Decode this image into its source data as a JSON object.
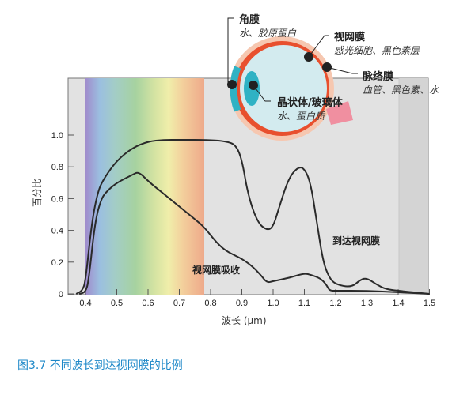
{
  "chart_data": {
    "type": "line",
    "title": "",
    "xlabel": "波长 (μm)",
    "ylabel": "百分比",
    "xlim": [
      0.35,
      1.5
    ],
    "ylim": [
      0,
      1.0
    ],
    "x_ticks": [
      "0.4",
      "0.5",
      "0.6",
      "0.7",
      "0.8",
      "0.9",
      "1.0",
      "1.1",
      "1.2",
      "1.3",
      "1.4",
      "1.5"
    ],
    "y_ticks": [
      "0",
      "0.2",
      "0.4",
      "0.6",
      "0.8",
      "1.0"
    ],
    "grid": false,
    "visible_spectrum_band": [
      0.4,
      0.78
    ],
    "series": [
      {
        "name": "到达视网膜",
        "x": [
          0.37,
          0.39,
          0.4,
          0.42,
          0.44,
          0.46,
          0.5,
          0.55,
          0.6,
          0.65,
          0.7,
          0.8,
          0.85,
          0.88,
          0.9,
          0.92,
          0.95,
          0.98,
          1.0,
          1.02,
          1.05,
          1.08,
          1.1,
          1.12,
          1.14,
          1.16,
          1.18,
          1.2,
          1.25,
          1.28,
          1.3,
          1.33,
          1.36,
          1.4,
          1.5
        ],
        "values": [
          0.0,
          0.02,
          0.08,
          0.45,
          0.65,
          0.73,
          0.84,
          0.92,
          0.96,
          0.97,
          0.97,
          0.97,
          0.96,
          0.94,
          0.85,
          0.62,
          0.45,
          0.4,
          0.42,
          0.55,
          0.73,
          0.8,
          0.79,
          0.7,
          0.45,
          0.2,
          0.1,
          0.06,
          0.04,
          0.09,
          0.1,
          0.06,
          0.03,
          0.02,
          0.0
        ]
      },
      {
        "name": "视网膜吸收",
        "x": [
          0.38,
          0.4,
          0.41,
          0.43,
          0.45,
          0.47,
          0.5,
          0.55,
          0.57,
          0.6,
          0.65,
          0.7,
          0.75,
          0.78,
          0.82,
          0.85,
          0.88,
          0.9,
          0.93,
          0.96,
          0.98,
          1.0,
          1.05,
          1.1,
          1.12,
          1.15,
          1.17,
          1.18,
          1.2,
          1.3,
          1.4,
          1.5
        ],
        "values": [
          0.0,
          0.01,
          0.08,
          0.45,
          0.6,
          0.65,
          0.7,
          0.75,
          0.77,
          0.71,
          0.63,
          0.55,
          0.47,
          0.42,
          0.32,
          0.27,
          0.24,
          0.22,
          0.18,
          0.12,
          0.07,
          0.08,
          0.1,
          0.13,
          0.12,
          0.1,
          0.06,
          0.02,
          0.02,
          0.02,
          0.01,
          0.0
        ]
      }
    ],
    "annotations": [
      "视网膜吸收",
      "到达视网膜"
    ]
  },
  "labels": {
    "ylabel": "百分比",
    "xlabel": "波长 (μm)",
    "curve_reach": "到达视网膜",
    "curve_absorb": "视网膜吸收",
    "caption": "图3.7  不同波长到达视网膜的比例"
  },
  "eye": {
    "cornea": {
      "title": "角膜",
      "desc": "水、胶原蛋白"
    },
    "retina": {
      "title": "视网膜",
      "desc": "感光细胞、黑色素层"
    },
    "choroid": {
      "title": "脉络膜",
      "desc": "血管、黑色素、水"
    },
    "lens": {
      "title": "晶状体/玻璃体",
      "desc": "水、蛋白质"
    }
  },
  "colors": {
    "plot_bg": "#e2e2e2",
    "ir_band": "#d4d4d4",
    "curve": "#2a2a2a",
    "caption": "#1e88c8",
    "eye_sclera": "#f6c7b0",
    "eye_wall": "#e8502e",
    "eye_inner": "#d3ebef",
    "eye_cyan": "#2fb2c4"
  }
}
